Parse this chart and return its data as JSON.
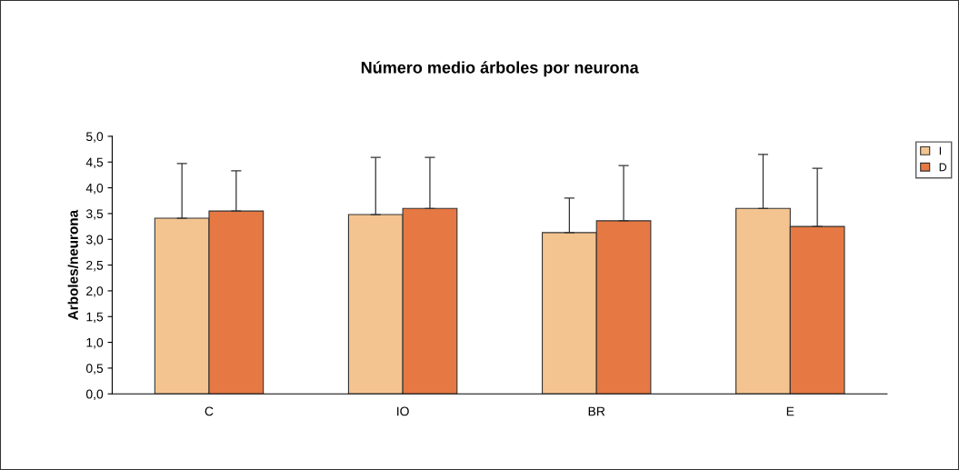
{
  "chart_data": {
    "type": "bar",
    "title": "Número medio árboles por neurona",
    "ylabel": "Arboles/neurona",
    "categories": [
      "C",
      "IO",
      "BR",
      "E"
    ],
    "series": [
      {
        "name": "I",
        "color": "#f4c490",
        "values": [
          3.41,
          3.48,
          3.13,
          3.6
        ],
        "errors": [
          [
            3.41,
            4.47
          ],
          [
            3.48,
            4.59
          ],
          [
            3.13,
            3.8
          ],
          [
            3.6,
            4.65
          ]
        ]
      },
      {
        "name": "D",
        "color": "#e67843",
        "values": [
          3.55,
          3.6,
          3.36,
          3.25
        ],
        "errors": [
          [
            3.55,
            4.33
          ],
          [
            3.6,
            4.59
          ],
          [
            3.36,
            4.43
          ],
          [
            3.25,
            4.38
          ]
        ]
      }
    ],
    "ylim": [
      0,
      5
    ],
    "yticks": [
      {
        "value": 0,
        "label": "0,0"
      },
      {
        "value": 0.5,
        "label": "0,5"
      },
      {
        "value": 1,
        "label": "1,0"
      },
      {
        "value": 1.5,
        "label": "1,5"
      },
      {
        "value": 2,
        "label": "2,0"
      },
      {
        "value": 2.5,
        "label": "2,5"
      },
      {
        "value": 3,
        "label": "3,0"
      },
      {
        "value": 3.5,
        "label": "3,5"
      },
      {
        "value": 4,
        "label": "4,0"
      },
      {
        "value": 4.5,
        "label": "4,5"
      },
      {
        "value": 5,
        "label": "5,0"
      }
    ],
    "grid": false,
    "legend": "right"
  }
}
